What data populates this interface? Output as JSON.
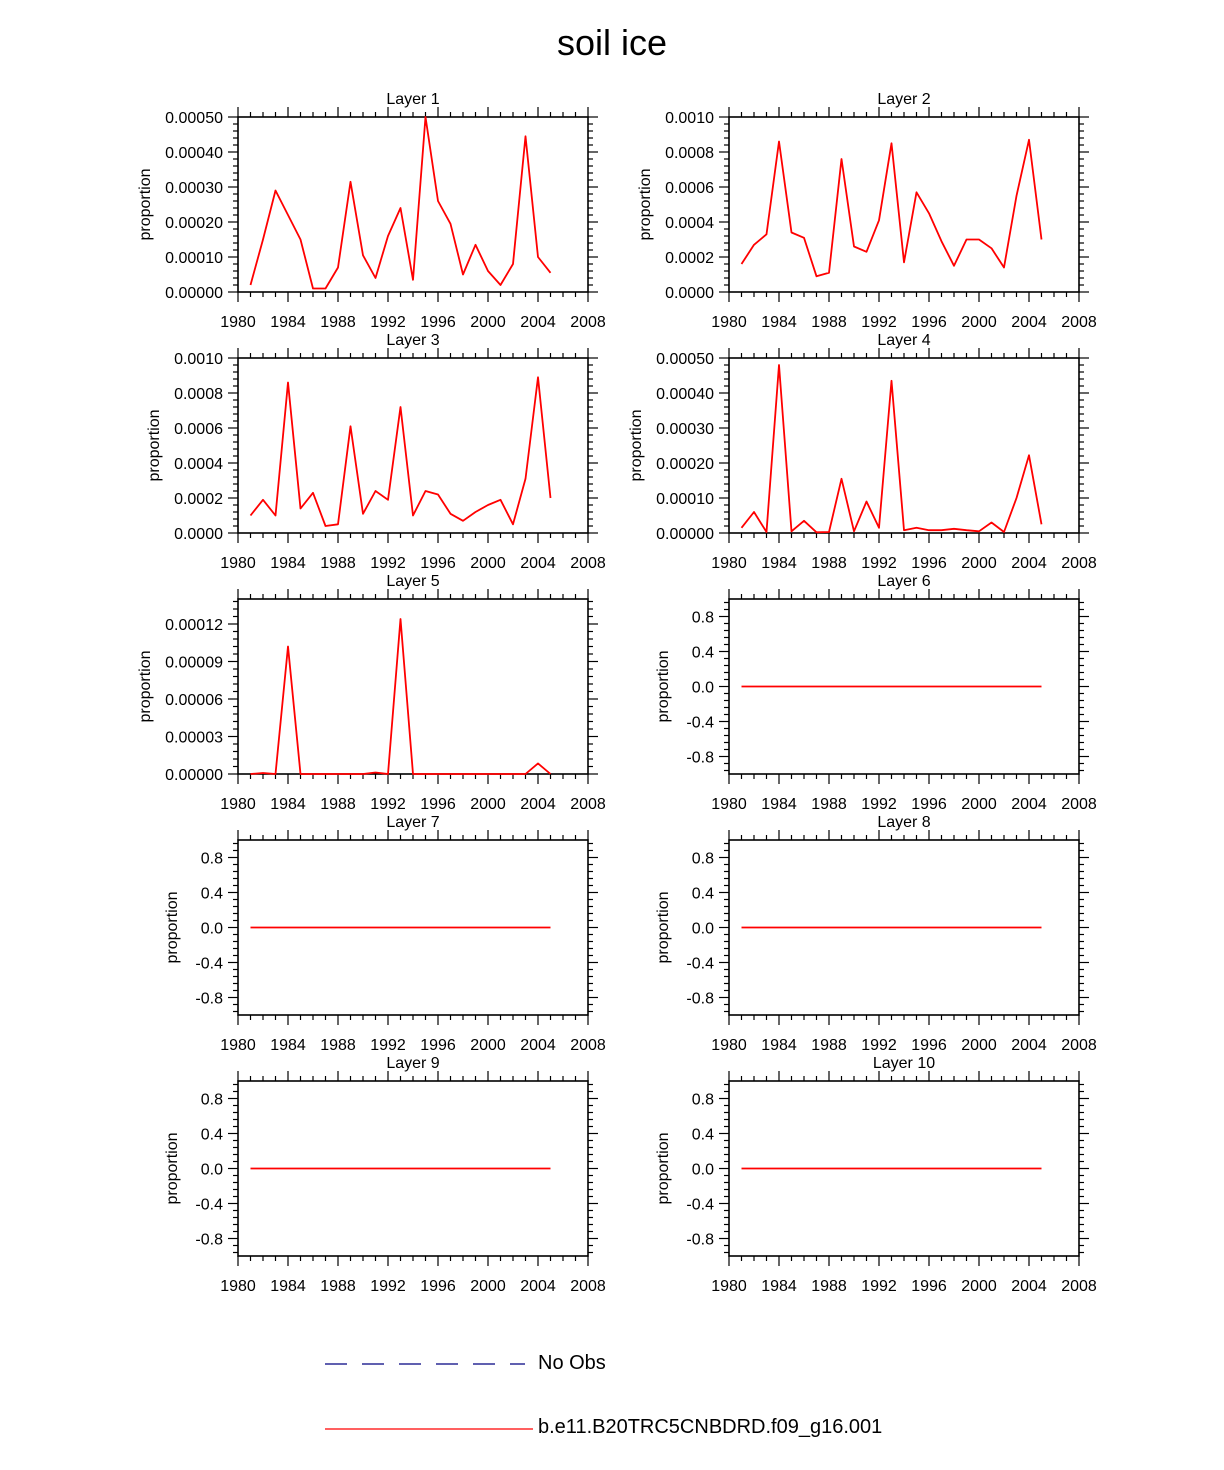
{
  "title": "soil ice",
  "colors": {
    "model_line": "#ff0000",
    "obs_line": "#000080",
    "axis": "#000000"
  },
  "legend": [
    {
      "label": "No Obs",
      "style": "dashed",
      "color": "#000080"
    },
    {
      "label": "b.e11.B20TRC5CNBDRD.f09_g16.001",
      "style": "solid",
      "color": "#ff0000"
    }
  ],
  "chart_data": [
    {
      "type": "line",
      "title": "Layer 1",
      "ylabel": "proportion",
      "xlim": [
        1980,
        2008
      ],
      "xticks": [
        1980,
        1984,
        1988,
        1992,
        1996,
        2000,
        2004,
        2008
      ],
      "ylim": [
        0,
        0.0005
      ],
      "yticks": [
        "0.00000",
        "0.00010",
        "0.00020",
        "0.00030",
        "0.00040",
        "0.00050"
      ],
      "ytick_values": [
        0,
        0.0001,
        0.0002,
        0.0003,
        0.0004,
        0.0005
      ],
      "series": [
        {
          "color": "#ff0000",
          "x": [
            1981,
            1982,
            1983,
            1984,
            1985,
            1986,
            1987,
            1988,
            1989,
            1990,
            1991,
            1992,
            1993,
            1994,
            1995,
            1996,
            1997,
            1998,
            1999,
            2000,
            2001,
            2002,
            2003,
            2004,
            2005
          ],
          "y": [
            2e-05,
            0.00015,
            0.00029,
            0.00022,
            0.00015,
            1e-05,
            1e-05,
            7e-05,
            0.000315,
            0.000105,
            4e-05,
            0.00016,
            0.00024,
            3.5e-05,
            0.0005,
            0.00026,
            0.000195,
            5e-05,
            0.000135,
            6e-05,
            2e-05,
            8e-05,
            0.000445,
            0.0001,
            5.5e-05
          ]
        }
      ]
    },
    {
      "type": "line",
      "title": "Layer 2",
      "ylabel": "proportion",
      "xlim": [
        1980,
        2008
      ],
      "xticks": [
        1980,
        1984,
        1988,
        1992,
        1996,
        2000,
        2004,
        2008
      ],
      "ylim": [
        0,
        0.001
      ],
      "yticks": [
        "0.0000",
        "0.0002",
        "0.0004",
        "0.0006",
        "0.0008",
        "0.0010"
      ],
      "ytick_values": [
        0,
        0.0002,
        0.0004,
        0.0006,
        0.0008,
        0.001
      ],
      "series": [
        {
          "color": "#ff0000",
          "x": [
            1981,
            1982,
            1983,
            1984,
            1985,
            1986,
            1987,
            1988,
            1989,
            1990,
            1991,
            1992,
            1993,
            1994,
            1995,
            1996,
            1997,
            1998,
            1999,
            2000,
            2001,
            2002,
            2003,
            2004,
            2005
          ],
          "y": [
            0.00016,
            0.00027,
            0.00033,
            0.00086,
            0.00034,
            0.00031,
            9e-05,
            0.00011,
            0.00076,
            0.00026,
            0.00023,
            0.00041,
            0.00085,
            0.00017,
            0.00057,
            0.00045,
            0.00029,
            0.00015,
            0.0003,
            0.0003,
            0.00025,
            0.00014,
            0.00055,
            0.00087,
            0.0003
          ]
        }
      ]
    },
    {
      "type": "line",
      "title": "Layer 3",
      "ylabel": "proportion",
      "xlim": [
        1980,
        2008
      ],
      "xticks": [
        1980,
        1984,
        1988,
        1992,
        1996,
        2000,
        2004,
        2008
      ],
      "ylim": [
        0,
        0.001
      ],
      "yticks": [
        "0.0000",
        "0.0002",
        "0.0004",
        "0.0006",
        "0.0008",
        "0.0010"
      ],
      "ytick_values": [
        0,
        0.0002,
        0.0004,
        0.0006,
        0.0008,
        0.001
      ],
      "series": [
        {
          "color": "#ff0000",
          "x": [
            1981,
            1982,
            1983,
            1984,
            1985,
            1986,
            1987,
            1988,
            1989,
            1990,
            1991,
            1992,
            1993,
            1994,
            1995,
            1996,
            1997,
            1998,
            1999,
            2000,
            2001,
            2002,
            2003,
            2004,
            2005
          ],
          "y": [
            0.0001,
            0.00019,
            0.0001,
            0.00086,
            0.00014,
            0.00023,
            4e-05,
            5e-05,
            0.00061,
            0.00011,
            0.00024,
            0.00019,
            0.00072,
            0.0001,
            0.00024,
            0.00022,
            0.00011,
            7e-05,
            0.00012,
            0.00016,
            0.00019,
            5e-05,
            0.00031,
            0.00089,
            0.0002
          ]
        }
      ]
    },
    {
      "type": "line",
      "title": "Layer 4",
      "ylabel": "proportion",
      "xlim": [
        1980,
        2008
      ],
      "xticks": [
        1980,
        1984,
        1988,
        1992,
        1996,
        2000,
        2004,
        2008
      ],
      "ylim": [
        0,
        0.0005
      ],
      "yticks": [
        "0.00000",
        "0.00010",
        "0.00020",
        "0.00030",
        "0.00040",
        "0.00050"
      ],
      "ytick_values": [
        0,
        0.0001,
        0.0002,
        0.0003,
        0.0004,
        0.0005
      ],
      "series": [
        {
          "color": "#ff0000",
          "x": [
            1981,
            1982,
            1983,
            1984,
            1985,
            1986,
            1987,
            1988,
            1989,
            1990,
            1991,
            1992,
            1993,
            1994,
            1995,
            1996,
            1997,
            1998,
            1999,
            2000,
            2001,
            2002,
            2003,
            2004,
            2005
          ],
          "y": [
            1.5e-05,
            6e-05,
            3e-06,
            0.00048,
            5e-06,
            3.5e-05,
            2e-06,
            3e-06,
            0.000155,
            5e-06,
            9e-05,
            1.5e-05,
            0.000435,
            8e-06,
            1.5e-05,
            8e-06,
            8e-06,
            1.2e-05,
            8e-06,
            5e-06,
            3e-05,
            3e-06,
            0.0001,
            0.000222,
            2.5e-05
          ]
        }
      ]
    },
    {
      "type": "line",
      "title": "Layer 5",
      "ylabel": "proportion",
      "xlim": [
        1980,
        2008
      ],
      "xticks": [
        1980,
        1984,
        1988,
        1992,
        1996,
        2000,
        2004,
        2008
      ],
      "ylim": [
        0,
        0.00014
      ],
      "yticks": [
        "0.00000",
        "0.00003",
        "0.00006",
        "0.00009",
        "0.00012"
      ],
      "ytick_values": [
        0,
        3e-05,
        6e-05,
        9e-05,
        0.00012
      ],
      "series": [
        {
          "color": "#ff0000",
          "x": [
            1981,
            1982,
            1983,
            1984,
            1985,
            1986,
            1987,
            1988,
            1989,
            1990,
            1991,
            1992,
            1993,
            1994,
            1995,
            1996,
            1997,
            1998,
            1999,
            2000,
            2001,
            2002,
            2003,
            2004,
            2005
          ],
          "y": [
            0,
            8e-07,
            0,
            0.000102,
            0,
            0,
            0,
            0,
            0,
            0,
            1.2e-06,
            0,
            0.000124,
            0,
            0,
            0,
            0,
            0,
            0,
            0,
            0,
            0,
            0,
            8.5e-06,
            0
          ]
        }
      ]
    },
    {
      "type": "line",
      "title": "Layer 6",
      "ylabel": "proportion",
      "xlim": [
        1980,
        2008
      ],
      "xticks": [
        1980,
        1984,
        1988,
        1992,
        1996,
        2000,
        2004,
        2008
      ],
      "ylim": [
        -1,
        1
      ],
      "yticks": [
        "-0.8",
        "-0.4",
        "0.0",
        "0.4",
        "0.8"
      ],
      "ytick_values": [
        -0.8,
        -0.4,
        0,
        0.4,
        0.8
      ],
      "series": [
        {
          "color": "#ff0000",
          "x": [
            1981,
            2005
          ],
          "y": [
            0,
            0
          ]
        }
      ]
    },
    {
      "type": "line",
      "title": "Layer 7",
      "ylabel": "proportion",
      "xlim": [
        1980,
        2008
      ],
      "xticks": [
        1980,
        1984,
        1988,
        1992,
        1996,
        2000,
        2004,
        2008
      ],
      "ylim": [
        -1,
        1
      ],
      "yticks": [
        "-0.8",
        "-0.4",
        "0.0",
        "0.4",
        "0.8"
      ],
      "ytick_values": [
        -0.8,
        -0.4,
        0,
        0.4,
        0.8
      ],
      "series": [
        {
          "color": "#ff0000",
          "x": [
            1981,
            2005
          ],
          "y": [
            0,
            0
          ]
        }
      ]
    },
    {
      "type": "line",
      "title": "Layer 8",
      "ylabel": "proportion",
      "xlim": [
        1980,
        2008
      ],
      "xticks": [
        1980,
        1984,
        1988,
        1992,
        1996,
        2000,
        2004,
        2008
      ],
      "ylim": [
        -1,
        1
      ],
      "yticks": [
        "-0.8",
        "-0.4",
        "0.0",
        "0.4",
        "0.8"
      ],
      "ytick_values": [
        -0.8,
        -0.4,
        0,
        0.4,
        0.8
      ],
      "series": [
        {
          "color": "#ff0000",
          "x": [
            1981,
            2005
          ],
          "y": [
            0,
            0
          ]
        }
      ]
    },
    {
      "type": "line",
      "title": "Layer 9",
      "ylabel": "proportion",
      "xlim": [
        1980,
        2008
      ],
      "xticks": [
        1980,
        1984,
        1988,
        1992,
        1996,
        2000,
        2004,
        2008
      ],
      "ylim": [
        -1,
        1
      ],
      "yticks": [
        "-0.8",
        "-0.4",
        "0.0",
        "0.4",
        "0.8"
      ],
      "ytick_values": [
        -0.8,
        -0.4,
        0,
        0.4,
        0.8
      ],
      "series": [
        {
          "color": "#ff0000",
          "x": [
            1981,
            2005
          ],
          "y": [
            0,
            0
          ]
        }
      ]
    },
    {
      "type": "line",
      "title": "Layer 10",
      "ylabel": "proportion",
      "xlim": [
        1980,
        2008
      ],
      "xticks": [
        1980,
        1984,
        1988,
        1992,
        1996,
        2000,
        2004,
        2008
      ],
      "ylim": [
        -1,
        1
      ],
      "yticks": [
        "-0.8",
        "-0.4",
        "0.0",
        "0.4",
        "0.8"
      ],
      "ytick_values": [
        -0.8,
        -0.4,
        0,
        0.4,
        0.8
      ],
      "series": [
        {
          "color": "#ff0000",
          "x": [
            1981,
            2005
          ],
          "y": [
            0,
            0
          ]
        }
      ]
    }
  ]
}
